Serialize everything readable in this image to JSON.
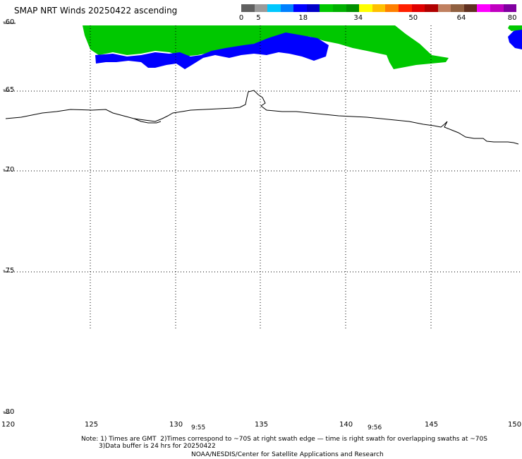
{
  "title": "SMAP NRT Winds 20250422 ascending",
  "colorbar": {
    "ticks": [
      "0",
      "5",
      "18",
      "34",
      "50",
      "64",
      "80"
    ],
    "colors": [
      "#606060",
      "#9a9a9a",
      "#00c8ff",
      "#0080ff",
      "#0000ff",
      "#0000c8",
      "#00c800",
      "#00b000",
      "#009000",
      "#ffff00",
      "#ffc000",
      "#ff8000",
      "#ff2000",
      "#e00000",
      "#b00000",
      "#c08060",
      "#906040",
      "#603020",
      "#ff00ff",
      "#c000c0",
      "#8000a0"
    ]
  },
  "map": {
    "lat_labels": [
      "-60",
      "-65",
      "-70",
      "-75",
      "-80"
    ],
    "lon_labels": [
      "120",
      "125",
      "130",
      "135",
      "140",
      "145",
      "150"
    ],
    "lat_range": [
      -60,
      -80
    ],
    "lon_range": [
      120,
      150
    ],
    "ocean_color": "#ffffff",
    "wind_colors": {
      "strong": "#00c800",
      "moderate": "#0000ff"
    }
  },
  "times": [
    "9:55",
    "9:56"
  ],
  "footer": {
    "note_line1": "Note: 1) Times are GMT  2)Times correspond to ~70S at right swath edge — time is right swath for overlapping swaths at ~70S",
    "note_line2": "3)Data buffer is 24 hrs for 20250422",
    "credit": "NOAA/NESDIS/Center for Satellite Applications and Research"
  }
}
